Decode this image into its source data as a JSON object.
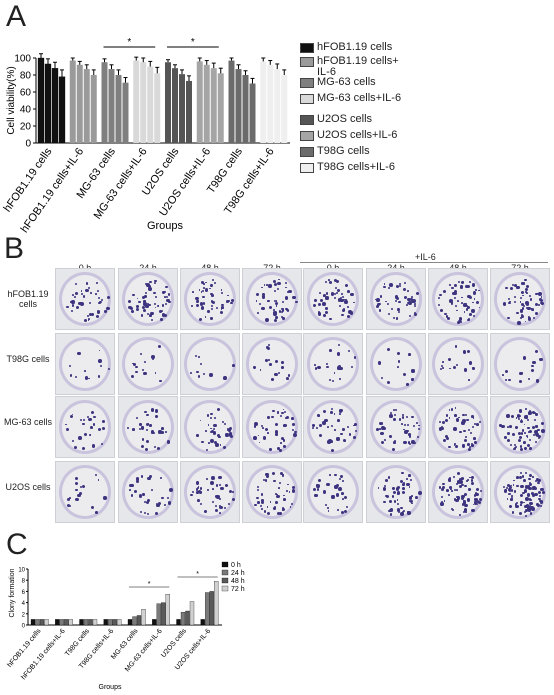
{
  "panelA": {
    "letter": "A",
    "xlabel": "Groups",
    "ylabel": "Cell viability(%)",
    "sig": [
      "*",
      "*"
    ],
    "legend": [
      {
        "label": "hFOB1.19 cells",
        "color": "#111111"
      },
      {
        "label": "hFOB1.19 cells+ IL-6",
        "color": "#9a9a9a"
      },
      {
        "label": "MG-63 cells",
        "color": "#7f7f7f"
      },
      {
        "label": "MG-63 cells+IL-6",
        "color": "#d9d9d9"
      },
      {
        "label": "U2OS cells",
        "color": "#555555"
      },
      {
        "label": "U2OS cells+IL-6",
        "color": "#a5a5a5"
      },
      {
        "label": "T98G cells",
        "color": "#6b6b6b"
      },
      {
        "label": "T98G cells+IL-6",
        "color": "#efefef"
      }
    ]
  },
  "panelB": {
    "letter": "B",
    "il6_label": "+IL-6",
    "col_labels": [
      "0 h",
      "24 h",
      "48 h",
      "72 h",
      "0 h",
      "24 h",
      "48 h",
      "72 h"
    ],
    "row_labels": [
      "hFOB1.19 cells",
      "T98G cells",
      "MG-63 cells",
      "U2OS cells"
    ],
    "colony_color": "#3d3480"
  },
  "panelC": {
    "letter": "C",
    "xlabel": "Groups",
    "ylabel": "Clony formation",
    "sig": [
      "*",
      "*"
    ],
    "legend": [
      {
        "label": "0 h",
        "color": "#111111"
      },
      {
        "label": "24 h",
        "color": "#7a7a7a"
      },
      {
        "label": "48 h",
        "color": "#5a5a5a"
      },
      {
        "label": "72 h",
        "color": "#d0d0d0"
      }
    ]
  },
  "chart_data": [
    {
      "type": "bar",
      "panel": "A",
      "xlabel": "Groups",
      "ylabel": "Cell viability(%)",
      "ylim": [
        0,
        100
      ],
      "yticks": [
        0,
        20,
        40,
        60,
        80,
        100
      ],
      "categories": [
        "hFOB1.19 cells",
        "hFOB1.19 cells+IL-6",
        "MG-63 cells",
        "MG-63 cells+IL-6",
        "U2OS cells",
        "U2OS cells+IL-6",
        "T98G cells",
        "T98G cells+IL-6"
      ],
      "series_per_category": 4,
      "values": [
        [
          100,
          93,
          88,
          78
        ],
        [
          97,
          92,
          87,
          80
        ],
        [
          95,
          87,
          80,
          71
        ],
        [
          97,
          95,
          90,
          82
        ],
        [
          95,
          88,
          81,
          73
        ],
        [
          96,
          92,
          88,
          82
        ],
        [
          97,
          87,
          80,
          70
        ],
        [
          96,
          92,
          87,
          80
        ]
      ],
      "errors": [
        [
          5,
          6,
          7,
          8
        ],
        [
          3,
          4,
          5,
          6
        ],
        [
          4,
          5,
          6,
          6
        ],
        [
          4,
          5,
          6,
          7
        ],
        [
          3,
          4,
          5,
          6
        ],
        [
          4,
          5,
          6,
          6
        ],
        [
          3,
          5,
          5,
          6
        ],
        [
          4,
          5,
          6,
          6
        ]
      ],
      "colors": [
        "#111111",
        "#9a9a9a",
        "#7f7f7f",
        "#d9d9d9",
        "#555555",
        "#a5a5a5",
        "#6b6b6b",
        "#efefef"
      ]
    },
    {
      "type": "bar",
      "panel": "C",
      "xlabel": "Groups",
      "ylabel": "Clony formation",
      "ylim": [
        0,
        10
      ],
      "yticks": [
        0,
        2,
        4,
        6,
        8,
        10
      ],
      "categories": [
        "hFOB1.19 cells",
        "hFOB1.19 cells+IL-6",
        "T98G cells",
        "T98G cells+IL-6",
        "MG-63 cells",
        "MG-63 cells+IL-6",
        "U2OS cells",
        "U2OS cells+IL-6"
      ],
      "series": [
        {
          "name": "0 h",
          "values": [
            1,
            1,
            1,
            1,
            1,
            1,
            1,
            1
          ]
        },
        {
          "name": "24 h",
          "values": [
            1,
            1,
            1,
            1,
            1.5,
            3.8,
            2.3,
            5.8
          ]
        },
        {
          "name": "48 h",
          "values": [
            1,
            1,
            1,
            1,
            1.7,
            4.0,
            2.5,
            6.0
          ]
        },
        {
          "name": "72 h",
          "values": [
            1,
            1,
            1,
            1,
            2.8,
            5.5,
            4.2,
            7.8
          ]
        }
      ],
      "colors": [
        "#111111",
        "#7a7a7a",
        "#5a5a5a",
        "#d0d0d0"
      ]
    }
  ]
}
